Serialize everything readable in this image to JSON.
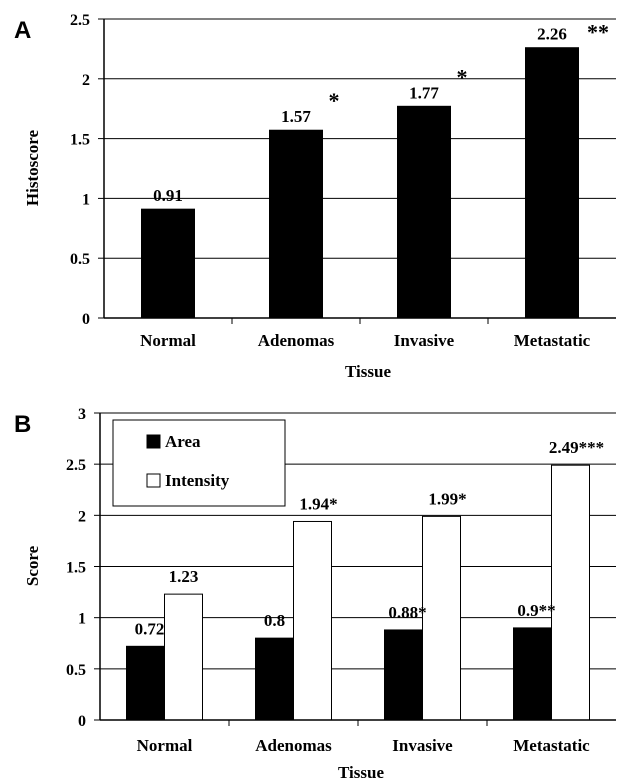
{
  "chart_data": [
    {
      "type": "bar",
      "panel": "A",
      "title": "",
      "xlabel": "Tissue",
      "ylabel": "Histoscore",
      "ylim": [
        0,
        2.5
      ],
      "yticks": [
        "0",
        "0.5",
        "1",
        "1.5",
        "2",
        "2.5"
      ],
      "categories": [
        "Normal",
        "Adenomas",
        "Invasive",
        "Metastatic"
      ],
      "series": [
        {
          "values": [
            0.91,
            1.57,
            1.77,
            2.26
          ],
          "labels": [
            "0.91",
            "1.57",
            "1.77",
            "2.26"
          ],
          "significance": [
            "",
            "*",
            "*",
            "**"
          ],
          "color": "#000000"
        }
      ],
      "grid": true,
      "legend": "none"
    },
    {
      "type": "bar",
      "panel": "B",
      "title": "",
      "xlabel": "Tissue",
      "ylabel": "Score",
      "ylim": [
        0,
        3
      ],
      "yticks": [
        "0",
        "0.5",
        "1",
        "1.5",
        "2",
        "2.5",
        "3"
      ],
      "categories": [
        "Normal",
        "Adenomas",
        "Invasive",
        "Metastatic"
      ],
      "series": [
        {
          "name": "Area",
          "values": [
            0.72,
            0.8,
            0.88,
            0.9
          ],
          "labels": [
            "0.72",
            "0.8",
            "0.88*",
            "0.9**"
          ],
          "color": "#000000"
        },
        {
          "name": "Intensity",
          "values": [
            1.23,
            1.94,
            1.99,
            2.49
          ],
          "labels": [
            "1.23",
            "1.94*",
            "1.99*",
            "2.49***"
          ],
          "color": "#ffffff"
        }
      ],
      "grid": true,
      "legend": "top-left"
    }
  ]
}
